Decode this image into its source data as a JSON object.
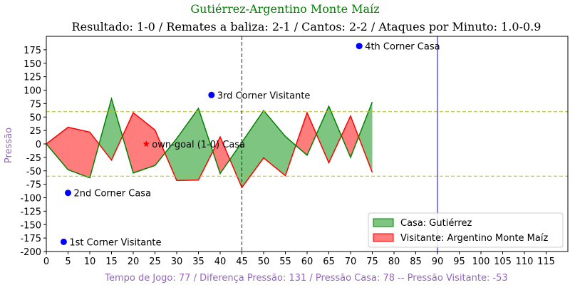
{
  "colors": {
    "home_line": "#008000",
    "home_fill": "#4caf50",
    "away_line": "#ff0000",
    "away_fill": "#ff6f6f",
    "title": "#008000",
    "label": "#9467bd",
    "threshold": "#bfbf00",
    "halftime": "#0000ff",
    "fulltime": "#0000ff",
    "event": "#0000ff"
  },
  "chart_data": {
    "type": "area",
    "title": "Gutiérrez-Argentino Monte Maíz",
    "subtitle": "Resultado: 1-0 / Remates a baliza: 2-1 / Cantos: 2-2 / Ataques por Minuto: 1.0-0.9",
    "xlabel": "Tempo de Jogo: 77 / Diferença Pressão: 131 / Pressão Casa: 78 -- Pressão Visitante: -53",
    "ylabel": "Pressão",
    "xlim": [
      0,
      120
    ],
    "ylim": [
      -200,
      200
    ],
    "xticks": [
      0,
      5,
      10,
      15,
      20,
      25,
      30,
      35,
      40,
      45,
      50,
      55,
      60,
      65,
      70,
      75,
      80,
      85,
      90,
      95,
      100,
      105,
      110,
      115
    ],
    "yticks": [
      -200,
      -175,
      -150,
      -125,
      -100,
      -75,
      -50,
      -25,
      0,
      25,
      50,
      75,
      100,
      125,
      150,
      175
    ],
    "thresholds": [
      60,
      -60
    ],
    "halftime_x": 45,
    "fulltime_x": 90,
    "x": [
      0,
      5,
      10,
      15,
      20,
      25,
      30,
      35,
      40,
      45,
      50,
      55,
      60,
      65,
      70,
      75
    ],
    "home": [
      0,
      -48,
      -63,
      84,
      -54,
      -40,
      10,
      66,
      -55,
      3,
      62,
      14,
      -21,
      70,
      -25,
      78
    ],
    "away": [
      0,
      31,
      22,
      -30,
      58,
      26,
      -68,
      -67,
      13,
      -81,
      -26,
      -59,
      58,
      -35,
      52,
      -53
    ],
    "series": [
      {
        "name": "Casa: Gutiérrez",
        "key": "home"
      },
      {
        "name": "Visitante: Argentino Monte Maíz",
        "key": "away"
      }
    ],
    "events": [
      {
        "x": 4,
        "y": -182,
        "marker": "dot",
        "label": "1st Corner Visitante"
      },
      {
        "x": 5,
        "y": -91,
        "marker": "dot",
        "label": "2nd Corner Casa"
      },
      {
        "x": 23,
        "y": 0,
        "marker": "star",
        "label": "own-goal (1-0) Casa"
      },
      {
        "x": 38,
        "y": 91,
        "marker": "dot",
        "label": "3rd Corner Visitante"
      },
      {
        "x": 72,
        "y": 182,
        "marker": "dot",
        "label": "4th Corner Casa"
      }
    ],
    "legend_position": "lower-right",
    "grid": false
  }
}
